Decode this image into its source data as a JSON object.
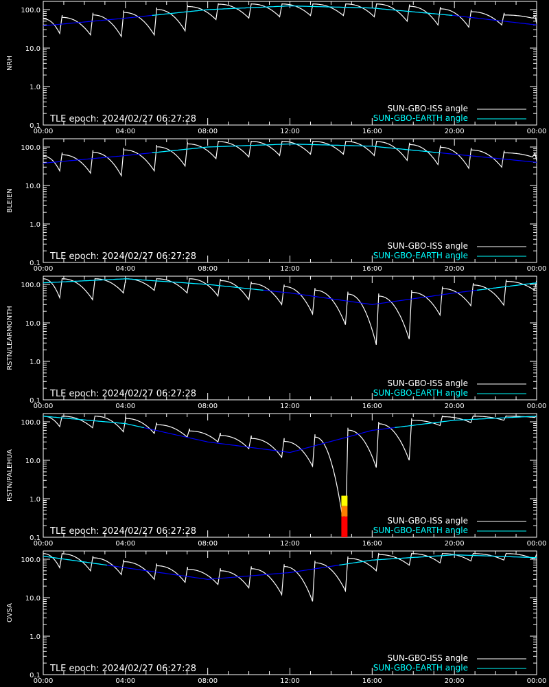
{
  "colors": {
    "background": "#000000",
    "axes": "#ffffff",
    "iss_angle": "#ffffff",
    "earth_angle_above": "#00ffff",
    "earth_angle_below": "#0000ff",
    "flag_red": "#ff0000",
    "flag_orange": "#ff8000",
    "flag_yellow": "#ffff00"
  },
  "legend": {
    "iss_label": "SUN-GBO-ISS angle",
    "earth_label": "SUN-GBO-EARTH angle"
  },
  "epoch_text": "TLE epoch: 2024/02/27 06:27:28",
  "chart_data": [
    {
      "type": "line",
      "observatory": "NRH",
      "xlim": [
        0,
        24
      ],
      "ylim": [
        0.1,
        100
      ],
      "yscale": "log",
      "x_ticks": [
        "00:00",
        "04:00",
        "08:00",
        "12:00",
        "16:00",
        "20:00",
        "00:00"
      ],
      "y_ticks": [
        "0.1",
        "1.0",
        "10.0",
        "100.0"
      ],
      "series": [
        {
          "name": "SUN-GBO-ISS angle",
          "orbit_period_h": 1.55,
          "phase_h": 0.35,
          "x": [
            0.8,
            2.3,
            3.8,
            5.4,
            6.9,
            8.4,
            10.0,
            11.5,
            13.0,
            14.6,
            16.1,
            17.7,
            19.2,
            20.7,
            22.3,
            23.8
          ],
          "minima": [
            24,
            22,
            20,
            22,
            28,
            55,
            60,
            65,
            70,
            70,
            65,
            50,
            40,
            35,
            40,
            60
          ]
        },
        {
          "name": "SUN-GBO-EARTH angle",
          "x": [
            0,
            4,
            8,
            12,
            16,
            20,
            24
          ],
          "values": [
            38,
            60,
            100,
            125,
            110,
            70,
            40
          ]
        }
      ]
    },
    {
      "type": "line",
      "observatory": "BLEIEN",
      "xlim": [
        0,
        24
      ],
      "ylim": [
        0.1,
        100
      ],
      "yscale": "log",
      "x_ticks": [
        "00:00",
        "04:00",
        "08:00",
        "12:00",
        "16:00",
        "20:00",
        "00:00"
      ],
      "y_ticks": [
        "0.1",
        "1.0",
        "10.0",
        "100.0"
      ],
      "series": [
        {
          "name": "SUN-GBO-ISS angle",
          "orbit_period_h": 1.55,
          "phase_h": 0.35,
          "x": [
            0.8,
            2.3,
            3.8,
            5.4,
            6.9,
            8.4,
            10.0,
            11.5,
            13.0,
            14.6,
            16.1,
            17.7,
            19.2,
            20.7,
            22.3,
            23.8
          ],
          "minima": [
            24,
            21,
            18,
            24,
            32,
            50,
            55,
            60,
            65,
            65,
            60,
            45,
            35,
            28,
            30,
            55
          ]
        },
        {
          "name": "SUN-GBO-EARTH angle",
          "x": [
            0,
            4,
            8,
            12,
            16,
            20,
            24
          ],
          "values": [
            38,
            60,
            100,
            120,
            105,
            65,
            40
          ]
        }
      ]
    },
    {
      "type": "line",
      "observatory": "RSTN/LEARMONTH",
      "xlim": [
        0,
        24
      ],
      "ylim": [
        0.1,
        100
      ],
      "yscale": "log",
      "x_ticks": [
        "00:00",
        "04:00",
        "08:00",
        "12:00",
        "16:00",
        "20:00",
        "00:00"
      ],
      "y_ticks": [
        "0.1",
        "1.0",
        "10.0",
        "100.0"
      ],
      "series": [
        {
          "name": "SUN-GBO-ISS angle",
          "orbit_period_h": 1.55,
          "phase_h": 0.35,
          "x": [
            0.8,
            2.4,
            3.9,
            5.4,
            7.0,
            8.5,
            10.0,
            11.6,
            13.1,
            14.7,
            16.2,
            17.8,
            19.3,
            20.8,
            22.4,
            23.9
          ],
          "minima": [
            45,
            40,
            60,
            70,
            60,
            50,
            40,
            30,
            17,
            9,
            2.7,
            3.8,
            16,
            28,
            29,
            70
          ]
        },
        {
          "name": "SUN-GBO-EARTH angle",
          "x": [
            0,
            4,
            8,
            12,
            16,
            20,
            24
          ],
          "values": [
            110,
            140,
            100,
            60,
            30,
            60,
            110
          ]
        }
      ]
    },
    {
      "type": "line",
      "observatory": "RSTN/PALEHUA",
      "xlim": [
        0,
        24
      ],
      "ylim": [
        0.1,
        100
      ],
      "yscale": "log",
      "x_ticks": [
        "00:00",
        "04:00",
        "08:00",
        "12:00",
        "16:00",
        "20:00",
        "00:00"
      ],
      "y_ticks": [
        "0.1",
        "1.0",
        "10.0",
        "100.0"
      ],
      "series": [
        {
          "name": "SUN-GBO-ISS angle",
          "orbit_period_h": 1.55,
          "phase_h": 0.35,
          "x": [
            0.8,
            2.4,
            3.9,
            5.4,
            7.0,
            8.5,
            10.0,
            11.6,
            13.1,
            14.7,
            16.2,
            17.8,
            19.3,
            20.8,
            22.4,
            23.9
          ],
          "minima": [
            75,
            70,
            55,
            50,
            40,
            30,
            20,
            12,
            7,
            0.1,
            6.5,
            10,
            80,
            95,
            110,
            130
          ]
        },
        {
          "name": "SUN-GBO-EARTH angle",
          "x": [
            0,
            4,
            8,
            12,
            16,
            20,
            24
          ],
          "values": [
            140,
            90,
            30,
            16,
            60,
            110,
            140
          ]
        }
      ],
      "flag": {
        "x_start": 14.5,
        "x_end": 14.8,
        "y_top": 1.2
      }
    },
    {
      "type": "line",
      "observatory": "OVSA",
      "xlim": [
        0,
        24
      ],
      "ylim": [
        0.1,
        100
      ],
      "yscale": "log",
      "x_ticks": [
        "00:00",
        "04:00",
        "08:00",
        "12:00",
        "16:00",
        "20:00",
        "00:00"
      ],
      "y_ticks": [
        "0.1",
        "1.0",
        "10.0",
        "100.0"
      ],
      "series": [
        {
          "name": "SUN-GBO-ISS angle",
          "orbit_period_h": 1.55,
          "phase_h": 0.35,
          "x": [
            0.8,
            2.3,
            3.8,
            5.4,
            6.9,
            8.5,
            10.0,
            11.6,
            13.1,
            14.7,
            16.2,
            17.8,
            19.3,
            20.8,
            22.4,
            23.9
          ],
          "minima": [
            60,
            50,
            40,
            30,
            25,
            22,
            18,
            12,
            8,
            15,
            50,
            70,
            80,
            90,
            95,
            100
          ]
        },
        {
          "name": "SUN-GBO-EARTH angle",
          "x": [
            0,
            4,
            8,
            12,
            16,
            20,
            24
          ],
          "values": [
            120,
            60,
            30,
            45,
            95,
            130,
            110
          ]
        }
      ]
    }
  ]
}
